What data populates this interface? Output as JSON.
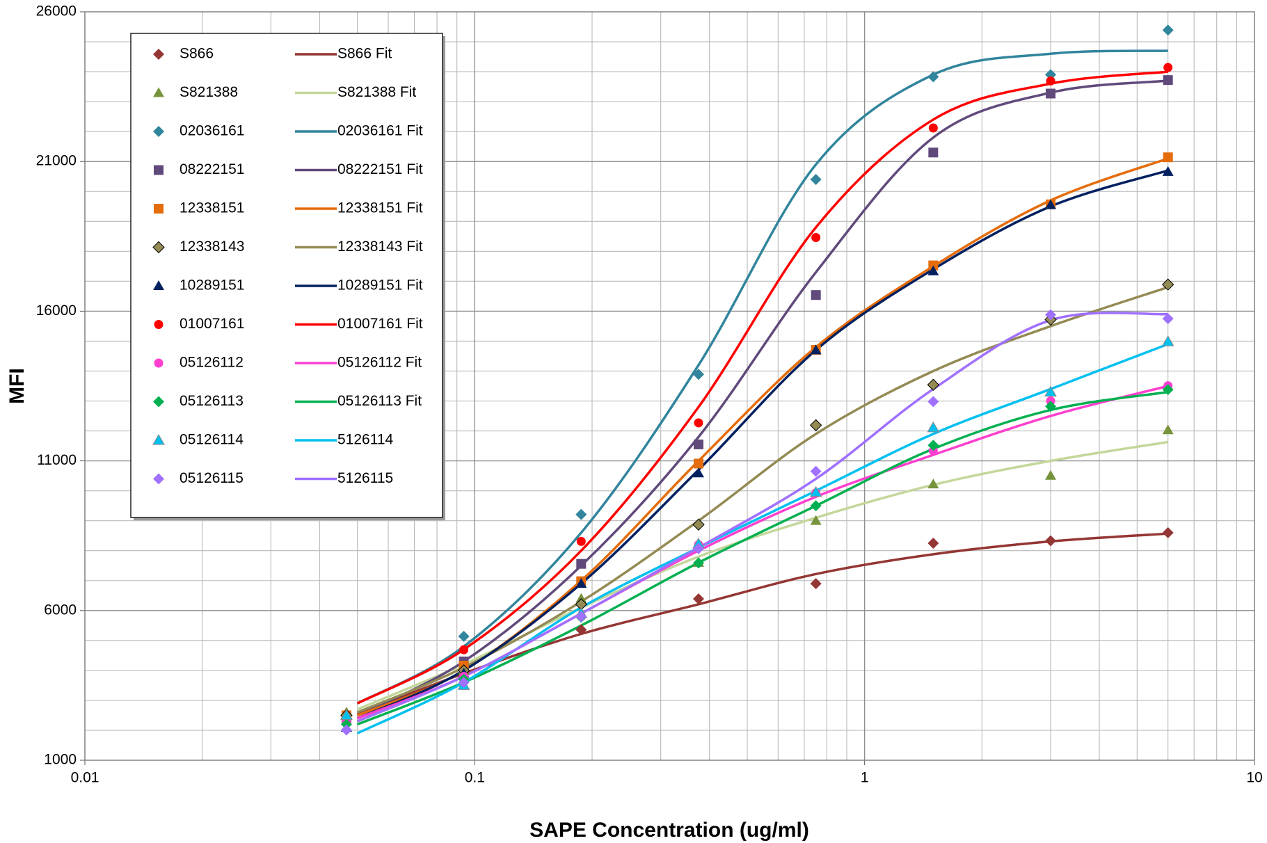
{
  "chart_data": {
    "type": "scatter",
    "x_label": "SAPE Concentration (ug/ml)",
    "y_label": "MFI",
    "xlog": true,
    "grid": true,
    "xlim": [
      0.01,
      10
    ],
    "ylim": [
      1000,
      26000
    ],
    "xticks": [
      0.01,
      0.1,
      1,
      10
    ],
    "yticks": [
      1000,
      6000,
      11000,
      16000,
      21000,
      26000
    ],
    "xminor": [
      0.02,
      0.03,
      0.04,
      0.05,
      0.06,
      0.07,
      0.08,
      0.09,
      0.2,
      0.3,
      0.4,
      0.5,
      0.6,
      0.7,
      0.8,
      0.9,
      2,
      3,
      4,
      5,
      6,
      7,
      8,
      9
    ],
    "yminor": [
      2000,
      3000,
      4000,
      5000,
      7000,
      8000,
      9000,
      10000,
      12000,
      13000,
      14000,
      15000,
      17000,
      18000,
      19000,
      20000,
      22000,
      23000,
      24000,
      25000
    ],
    "legend": "upper-left",
    "x": [
      0.046875,
      0.09375,
      0.1875,
      0.375,
      0.75,
      1.5,
      3,
      6
    ],
    "series": [
      {
        "name": "S866",
        "color": "#943634",
        "marker": "diamond",
        "values": [
          2400,
          3900,
          5360,
          6390,
          6900,
          8250,
          8330,
          8600
        ]
      },
      {
        "name": "S821388",
        "color": "#77933c",
        "marker": "triangle",
        "values": [
          2600,
          4000,
          6400,
          7600,
          9000,
          10220,
          10510,
          12030
        ]
      },
      {
        "name": "02036161",
        "color": "#31859c",
        "marker": "diamond",
        "values": [
          2500,
          5140,
          9210,
          13890,
          20400,
          23830,
          23900,
          25390
        ]
      },
      {
        "name": "08222151",
        "color": "#604a7b",
        "marker": "square",
        "values": [
          2400,
          4300,
          7560,
          11550,
          16540,
          21300,
          23270,
          23720
        ]
      },
      {
        "name": "12338151",
        "color": "#e46c0a",
        "marker": "square",
        "values": [
          2500,
          4160,
          6980,
          10910,
          14710,
          17530,
          19570,
          21140
        ]
      },
      {
        "name": "12338143",
        "color": "#948a54",
        "marker": "diamond-outline",
        "values": [
          2500,
          4000,
          6210,
          8870,
          12190,
          13540,
          15720,
          16890
        ]
      },
      {
        "name": "10289151",
        "color": "#002060",
        "marker": "triangle",
        "values": [
          2090,
          3900,
          6900,
          10590,
          14700,
          17340,
          19550,
          20660
        ]
      },
      {
        "name": "01007161",
        "color": "#ff0000",
        "marker": "circle",
        "values": [
          2400,
          4690,
          8310,
          12270,
          18460,
          22120,
          23690,
          24140
        ]
      },
      {
        "name": "05126112",
        "color": "#ff3fcf",
        "marker": "circle",
        "values": [
          2300,
          3800,
          5800,
          8200,
          9930,
          11340,
          13000,
          13510
        ]
      },
      {
        "name": "05126113",
        "color": "#00b050",
        "marker": "diamond",
        "values": [
          2200,
          3700,
          5780,
          7590,
          9500,
          11520,
          12820,
          13380
        ]
      },
      {
        "name": "05126114",
        "color": "#00c0ef",
        "marker": "triangle-outline",
        "values": [
          2500,
          3500,
          5900,
          8230,
          9950,
          12110,
          13300,
          14980
        ]
      },
      {
        "name": "05126115",
        "color": "#a070ff",
        "marker": "diamond",
        "values": [
          2010,
          3600,
          5800,
          8070,
          10650,
          12980,
          15880,
          15750
        ]
      }
    ],
    "fits": [
      {
        "name": "S866 Fit",
        "color": "#943634",
        "x": [
          0.05,
          0.09375,
          0.1875,
          0.375,
          0.75,
          1.5,
          3,
          6
        ],
        "values": [
          2540,
          3900,
          5220,
          6210,
          7220,
          7880,
          8310,
          8570
        ]
      },
      {
        "name": "S821388 Fit",
        "color": "#c4d79b",
        "x": [
          0.05,
          0.09375,
          0.1875,
          0.375,
          0.75,
          1.5,
          3,
          6
        ],
        "values": [
          2700,
          4200,
          6100,
          7800,
          9100,
          10200,
          11000,
          11630
        ]
      },
      {
        "name": "02036161 Fit",
        "color": "#31859c",
        "x": [
          0.05,
          0.09375,
          0.1875,
          0.375,
          0.75,
          1.5,
          3,
          6
        ],
        "values": [
          2900,
          4800,
          8600,
          14200,
          20900,
          23900,
          24600,
          24700
        ]
      },
      {
        "name": "08222151 Fit",
        "color": "#604a7b",
        "x": [
          0.05,
          0.09375,
          0.1875,
          0.375,
          0.75,
          1.5,
          3,
          6
        ],
        "values": [
          2500,
          4300,
          7500,
          11800,
          17300,
          21800,
          23300,
          23700
        ]
      },
      {
        "name": "12338151 Fit",
        "color": "#e46c0a",
        "x": [
          0.05,
          0.09375,
          0.1875,
          0.375,
          0.75,
          1.5,
          3,
          6
        ],
        "values": [
          2500,
          4000,
          7000,
          11000,
          14800,
          17500,
          19700,
          21100
        ]
      },
      {
        "name": "12338143 Fit",
        "color": "#948a54",
        "x": [
          0.05,
          0.09375,
          0.1875,
          0.375,
          0.75,
          1.5,
          3,
          6
        ],
        "values": [
          2600,
          4100,
          6300,
          9000,
          11900,
          14000,
          15500,
          16800
        ]
      },
      {
        "name": "10289151 Fit",
        "color": "#002060",
        "x": [
          0.05,
          0.09375,
          0.1875,
          0.375,
          0.75,
          1.5,
          3,
          6
        ],
        "values": [
          2400,
          4000,
          6900,
          10700,
          14700,
          17400,
          19500,
          20700
        ]
      },
      {
        "name": "01007161 Fit",
        "color": "#ff0000",
        "x": [
          0.05,
          0.09375,
          0.1875,
          0.375,
          0.75,
          1.5,
          3,
          6
        ],
        "values": [
          2900,
          4700,
          8000,
          12800,
          18800,
          22400,
          23600,
          24000
        ]
      },
      {
        "name": "05126112 Fit",
        "color": "#ff3fcf",
        "x": [
          0.05,
          0.09375,
          0.1875,
          0.375,
          0.75,
          1.5,
          3,
          6
        ],
        "values": [
          2400,
          3800,
          5900,
          8000,
          9800,
          11200,
          12500,
          13500
        ]
      },
      {
        "name": "05126113 Fit",
        "color": "#00b050",
        "x": [
          0.05,
          0.09375,
          0.1875,
          0.375,
          0.75,
          1.5,
          3,
          6
        ],
        "values": [
          2200,
          3600,
          5500,
          7600,
          9500,
          11400,
          12700,
          13300
        ]
      },
      {
        "name": "5126114",
        "color": "#00c0ef",
        "x": [
          0.05,
          0.09375,
          0.1875,
          0.375,
          0.75,
          1.5,
          3,
          6
        ],
        "values": [
          1900,
          3600,
          6100,
          8100,
          10000,
          11900,
          13400,
          14900
        ]
      },
      {
        "name": "5126115",
        "color": "#a070ff",
        "x": [
          0.05,
          0.09375,
          0.1875,
          0.375,
          0.75,
          1.5,
          3,
          6
        ],
        "values": [
          2300,
          3800,
          5900,
          8100,
          10400,
          13400,
          15700,
          15900
        ]
      }
    ]
  }
}
